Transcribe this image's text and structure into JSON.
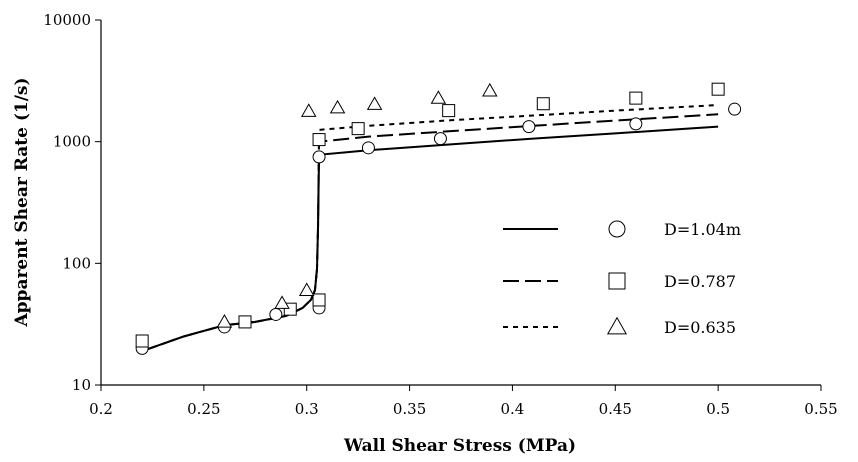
{
  "chart_data": {
    "type": "scatter",
    "xlabel": "Wall Shear Stress (MPa)",
    "ylabel": "Apparent Shear Rate (1/s)",
    "xlim": [
      0.2,
      0.55
    ],
    "ylim": [
      10,
      10000
    ],
    "yscale": "log",
    "x_ticks": [
      "0.2",
      "0.25",
      "0.3",
      "0.35",
      "0.4",
      "0.45",
      "0.5",
      "0.55"
    ],
    "y_ticks": [
      "10",
      "100",
      "1000",
      "10000"
    ],
    "grid": false,
    "legend_position": "right",
    "series": [
      {
        "name": "D=1.04m",
        "marker": "circle",
        "line": "solid",
        "points": [
          [
            0.22,
            20
          ],
          [
            0.26,
            30
          ],
          [
            0.285,
            38
          ],
          [
            0.306,
            43
          ],
          [
            0.306,
            750
          ],
          [
            0.33,
            890
          ],
          [
            0.365,
            1060
          ],
          [
            0.408,
            1330
          ],
          [
            0.46,
            1400
          ],
          [
            0.508,
            1850
          ]
        ],
        "curve": [
          [
            0.22,
            19
          ],
          [
            0.24,
            25
          ],
          [
            0.26,
            31
          ],
          [
            0.275,
            33
          ],
          [
            0.29,
            37
          ],
          [
            0.298,
            43
          ],
          [
            0.302,
            50
          ],
          [
            0.304,
            60
          ],
          [
            0.305,
            90
          ],
          [
            0.3055,
            200
          ],
          [
            0.306,
            780
          ],
          [
            0.33,
            850
          ],
          [
            0.37,
            950
          ],
          [
            0.41,
            1060
          ],
          [
            0.45,
            1170
          ],
          [
            0.5,
            1330
          ]
        ]
      },
      {
        "name": "D=0.787",
        "marker": "square",
        "line": "dashed",
        "points": [
          [
            0.22,
            23
          ],
          [
            0.27,
            33
          ],
          [
            0.292,
            42
          ],
          [
            0.306,
            50
          ],
          [
            0.306,
            1040
          ],
          [
            0.325,
            1280
          ],
          [
            0.369,
            1800
          ],
          [
            0.415,
            2050
          ],
          [
            0.46,
            2280
          ],
          [
            0.5,
            2700
          ]
        ],
        "curve": [
          [
            0.22,
            19
          ],
          [
            0.24,
            25
          ],
          [
            0.26,
            31
          ],
          [
            0.275,
            33
          ],
          [
            0.29,
            37
          ],
          [
            0.298,
            43
          ],
          [
            0.302,
            50
          ],
          [
            0.304,
            60
          ],
          [
            0.305,
            90
          ],
          [
            0.3055,
            200
          ],
          [
            0.306,
            1000
          ],
          [
            0.33,
            1100
          ],
          [
            0.37,
            1220
          ],
          [
            0.41,
            1350
          ],
          [
            0.45,
            1490
          ],
          [
            0.5,
            1680
          ]
        ]
      },
      {
        "name": "D=0.635",
        "marker": "triangle",
        "line": "dotted",
        "points": [
          [
            0.26,
            33
          ],
          [
            0.288,
            47
          ],
          [
            0.3,
            60
          ],
          [
            0.301,
            1780
          ],
          [
            0.315,
            1900
          ],
          [
            0.333,
            2030
          ],
          [
            0.364,
            2280
          ],
          [
            0.389,
            2620
          ]
        ],
        "curve": [
          [
            0.22,
            19
          ],
          [
            0.24,
            25
          ],
          [
            0.26,
            31
          ],
          [
            0.275,
            33
          ],
          [
            0.29,
            37
          ],
          [
            0.298,
            43
          ],
          [
            0.302,
            50
          ],
          [
            0.304,
            60
          ],
          [
            0.305,
            90
          ],
          [
            0.3055,
            200
          ],
          [
            0.306,
            1250
          ],
          [
            0.33,
            1350
          ],
          [
            0.37,
            1500
          ],
          [
            0.41,
            1640
          ],
          [
            0.45,
            1800
          ],
          [
            0.5,
            2000
          ]
        ]
      }
    ]
  }
}
